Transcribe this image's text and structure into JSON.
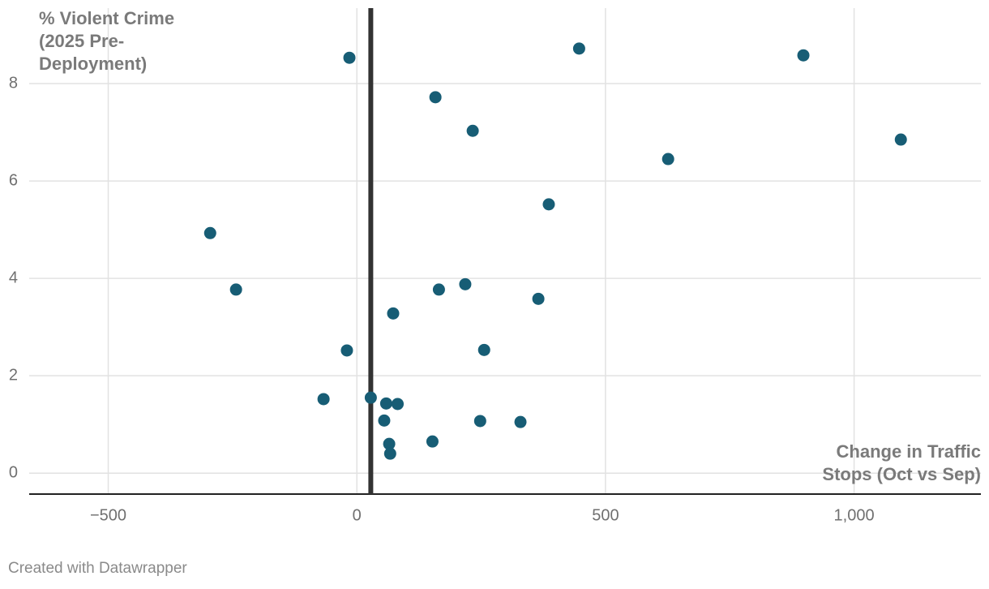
{
  "chart_data": {
    "type": "scatter",
    "y_label": "% Violent Crime (2025 Pre-Deployment)",
    "x_label": "Change in Traffic Stops (Oct vs Sep)",
    "credit": "Created with Datawrapper",
    "color": "#175d75",
    "grid": true,
    "xlim": [
      -659,
      1255
    ],
    "ylim": [
      -0.43,
      9.55
    ],
    "xticks": [
      {
        "value": -500,
        "label": "−500"
      },
      0,
      500,
      {
        "value": 1000,
        "label": "1,000"
      }
    ],
    "yticks": [
      0,
      2,
      4,
      6,
      8
    ],
    "vline": 28,
    "x": [
      -15,
      447,
      898,
      158,
      233,
      1094,
      626,
      386,
      -295,
      -243,
      165,
      218,
      365,
      73,
      -20,
      256,
      -67,
      28,
      59,
      82,
      55,
      248,
      329,
      65,
      152,
      67
    ],
    "values": [
      8.53,
      8.72,
      8.58,
      7.72,
      7.03,
      6.85,
      6.45,
      5.52,
      4.93,
      3.77,
      3.77,
      3.88,
      3.58,
      3.28,
      2.52,
      2.53,
      1.52,
      1.55,
      1.43,
      1.42,
      1.08,
      1.07,
      1.05,
      0.6,
      0.65,
      0.4
    ]
  }
}
